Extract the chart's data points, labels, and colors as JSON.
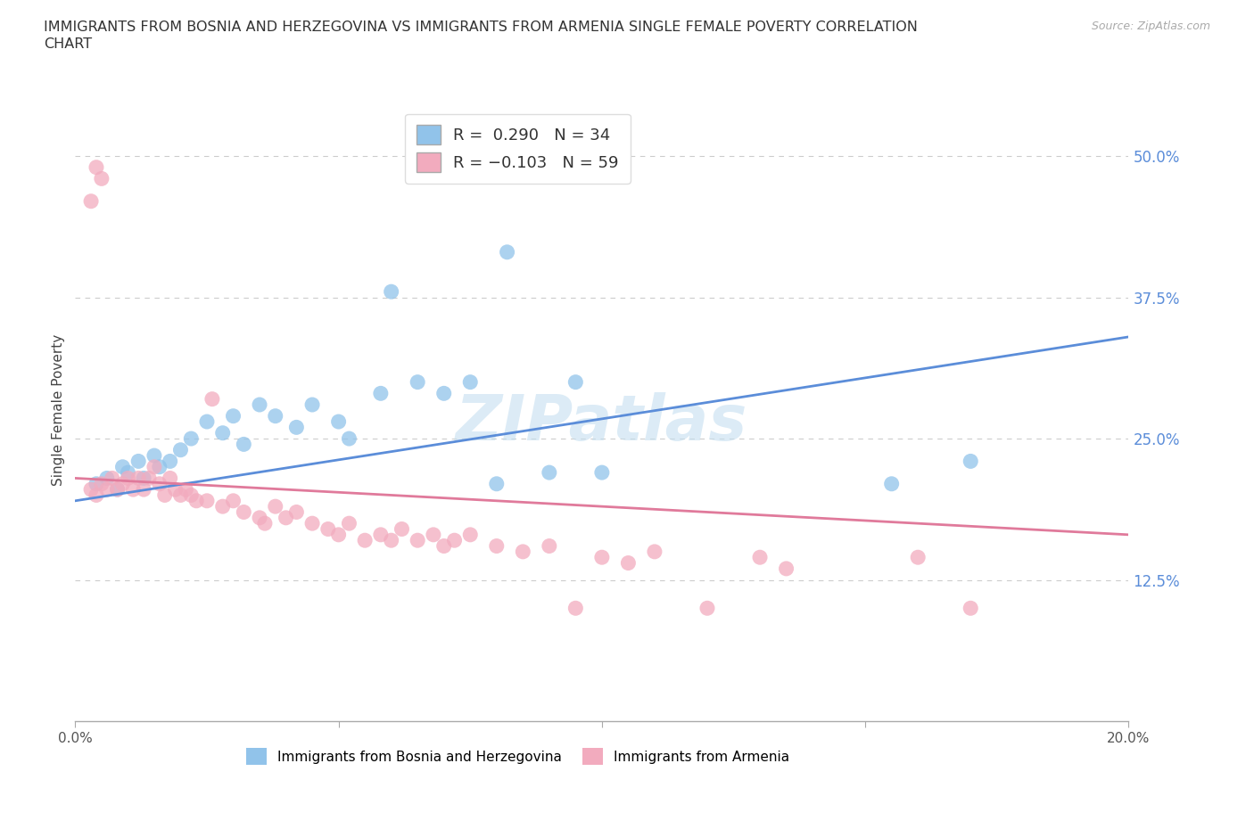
{
  "title_line1": "IMMIGRANTS FROM BOSNIA AND HERZEGOVINA VS IMMIGRANTS FROM ARMENIA SINGLE FEMALE POVERTY CORRELATION",
  "title_line2": "CHART",
  "source_text": "Source: ZipAtlas.com",
  "ylabel": "Single Female Poverty",
  "xlim": [
    0.0,
    0.2
  ],
  "ylim": [
    0.0,
    0.55
  ],
  "xtick_values": [
    0.0,
    0.05,
    0.1,
    0.15,
    0.2
  ],
  "xtick_labels": [
    "0.0%",
    "",
    "",
    "",
    "20.0%"
  ],
  "ytick_labels": [
    "12.5%",
    "25.0%",
    "37.5%",
    "50.0%"
  ],
  "ytick_values": [
    0.125,
    0.25,
    0.375,
    0.5
  ],
  "grid_color": "#cccccc",
  "blue_color": "#91C3EA",
  "pink_color": "#F2ABBE",
  "blue_line_color": "#5B8DD9",
  "pink_line_color": "#E07A9B",
  "R_blue": 0.29,
  "N_blue": 34,
  "R_pink": -0.103,
  "N_pink": 59,
  "blue_scatter": [
    [
      0.004,
      0.21
    ],
    [
      0.006,
      0.215
    ],
    [
      0.008,
      0.205
    ],
    [
      0.009,
      0.225
    ],
    [
      0.01,
      0.22
    ],
    [
      0.012,
      0.23
    ],
    [
      0.013,
      0.215
    ],
    [
      0.015,
      0.235
    ],
    [
      0.016,
      0.225
    ],
    [
      0.018,
      0.23
    ],
    [
      0.02,
      0.24
    ],
    [
      0.022,
      0.25
    ],
    [
      0.025,
      0.265
    ],
    [
      0.028,
      0.255
    ],
    [
      0.03,
      0.27
    ],
    [
      0.032,
      0.245
    ],
    [
      0.035,
      0.28
    ],
    [
      0.038,
      0.27
    ],
    [
      0.042,
      0.26
    ],
    [
      0.045,
      0.28
    ],
    [
      0.05,
      0.265
    ],
    [
      0.052,
      0.25
    ],
    [
      0.058,
      0.29
    ],
    [
      0.06,
      0.38
    ],
    [
      0.065,
      0.3
    ],
    [
      0.07,
      0.29
    ],
    [
      0.075,
      0.3
    ],
    [
      0.08,
      0.21
    ],
    [
      0.082,
      0.415
    ],
    [
      0.09,
      0.22
    ],
    [
      0.095,
      0.3
    ],
    [
      0.1,
      0.22
    ],
    [
      0.155,
      0.21
    ],
    [
      0.17,
      0.23
    ]
  ],
  "pink_scatter": [
    [
      0.003,
      0.46
    ],
    [
      0.004,
      0.49
    ],
    [
      0.005,
      0.48
    ],
    [
      0.003,
      0.205
    ],
    [
      0.004,
      0.2
    ],
    [
      0.005,
      0.21
    ],
    [
      0.006,
      0.205
    ],
    [
      0.007,
      0.215
    ],
    [
      0.008,
      0.205
    ],
    [
      0.009,
      0.21
    ],
    [
      0.01,
      0.215
    ],
    [
      0.011,
      0.205
    ],
    [
      0.012,
      0.215
    ],
    [
      0.013,
      0.205
    ],
    [
      0.014,
      0.215
    ],
    [
      0.015,
      0.225
    ],
    [
      0.016,
      0.21
    ],
    [
      0.017,
      0.2
    ],
    [
      0.018,
      0.215
    ],
    [
      0.019,
      0.205
    ],
    [
      0.02,
      0.2
    ],
    [
      0.021,
      0.205
    ],
    [
      0.022,
      0.2
    ],
    [
      0.023,
      0.195
    ],
    [
      0.025,
      0.195
    ],
    [
      0.026,
      0.285
    ],
    [
      0.028,
      0.19
    ],
    [
      0.03,
      0.195
    ],
    [
      0.032,
      0.185
    ],
    [
      0.035,
      0.18
    ],
    [
      0.036,
      0.175
    ],
    [
      0.038,
      0.19
    ],
    [
      0.04,
      0.18
    ],
    [
      0.042,
      0.185
    ],
    [
      0.045,
      0.175
    ],
    [
      0.048,
      0.17
    ],
    [
      0.05,
      0.165
    ],
    [
      0.052,
      0.175
    ],
    [
      0.055,
      0.16
    ],
    [
      0.058,
      0.165
    ],
    [
      0.06,
      0.16
    ],
    [
      0.062,
      0.17
    ],
    [
      0.065,
      0.16
    ],
    [
      0.068,
      0.165
    ],
    [
      0.07,
      0.155
    ],
    [
      0.072,
      0.16
    ],
    [
      0.075,
      0.165
    ],
    [
      0.08,
      0.155
    ],
    [
      0.085,
      0.15
    ],
    [
      0.09,
      0.155
    ],
    [
      0.095,
      0.1
    ],
    [
      0.1,
      0.145
    ],
    [
      0.105,
      0.14
    ],
    [
      0.11,
      0.15
    ],
    [
      0.12,
      0.1
    ],
    [
      0.13,
      0.145
    ],
    [
      0.135,
      0.135
    ],
    [
      0.16,
      0.145
    ],
    [
      0.17,
      0.1
    ]
  ],
  "blue_trend": [
    0.195,
    0.34
  ],
  "pink_trend": [
    0.215,
    0.165
  ]
}
